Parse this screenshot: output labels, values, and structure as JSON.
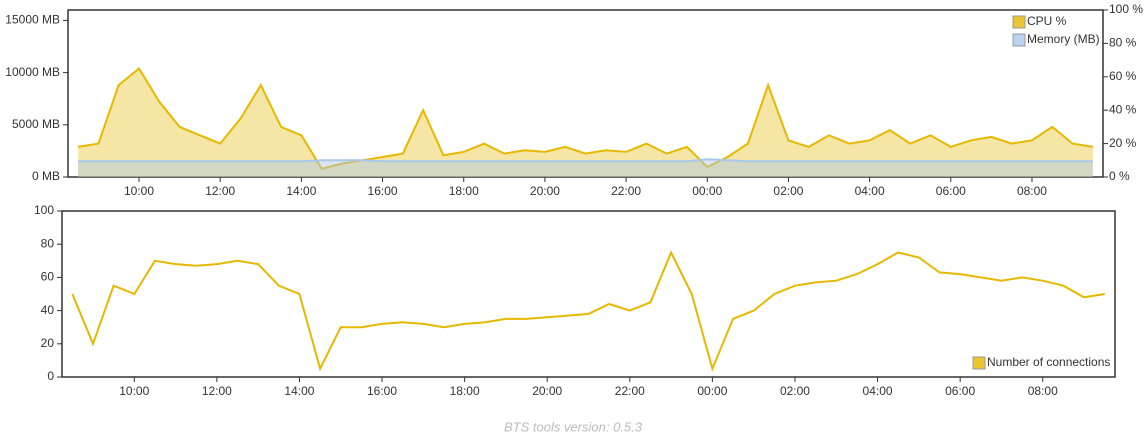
{
  "chart_data": [
    {
      "type": "area",
      "x": [
        "08:30",
        "09:00",
        "09:30",
        "10:00",
        "10:30",
        "11:00",
        "11:30",
        "12:00",
        "12:30",
        "13:00",
        "13:30",
        "14:00",
        "14:30",
        "15:00",
        "15:30",
        "16:00",
        "16:30",
        "17:00",
        "17:30",
        "18:00",
        "18:30",
        "19:00",
        "19:30",
        "20:00",
        "20:30",
        "21:00",
        "21:30",
        "22:00",
        "22:30",
        "23:00",
        "23:30",
        "00:00",
        "00:30",
        "01:00",
        "01:30",
        "02:00",
        "02:30",
        "03:00",
        "03:30",
        "04:00",
        "04:30",
        "05:00",
        "05:30",
        "06:00",
        "06:30",
        "07:00",
        "07:30",
        "08:00",
        "08:30",
        "09:00",
        "09:30"
      ],
      "xticks": [
        "10:00",
        "12:00",
        "14:00",
        "16:00",
        "18:00",
        "20:00",
        "22:00",
        "00:00",
        "02:00",
        "04:00",
        "06:00",
        "08:00"
      ],
      "ylim": [
        0,
        16000
      ],
      "yticks": [
        {
          "value": 0,
          "label": "0 MB"
        },
        {
          "value": 5000,
          "label": "5000 MB"
        },
        {
          "value": 10000,
          "label": "10000 MB"
        },
        {
          "value": 15000,
          "label": "15000 MB"
        }
      ],
      "y2lim": [
        0,
        100
      ],
      "y2ticks": [
        {
          "value": 0,
          "label": "0 %"
        },
        {
          "value": 20,
          "label": "20 %"
        },
        {
          "value": 40,
          "label": "40 %"
        },
        {
          "value": 60,
          "label": "60 %"
        },
        {
          "value": 80,
          "label": "80 %"
        },
        {
          "value": 100,
          "label": "100 %"
        }
      ],
      "legend": "upper right",
      "series": [
        {
          "name": "CPU %",
          "color": "#e6b800",
          "axis": "y2",
          "values": [
            18,
            20,
            55,
            65,
            45,
            30,
            25,
            20,
            35,
            55,
            30,
            25,
            5,
            8,
            10,
            12,
            14,
            40,
            13,
            15,
            20,
            14,
            16,
            15,
            18,
            14,
            16,
            15,
            20,
            14,
            18,
            6,
            12,
            20,
            55,
            22,
            18,
            25,
            20,
            22,
            28,
            20,
            25,
            18,
            22,
            24,
            20,
            22,
            30,
            20,
            18
          ]
        },
        {
          "name": "Memory (MB)",
          "color": "#a9c8ec",
          "axis": "y",
          "values": [
            1500,
            1500,
            1500,
            1500,
            1500,
            1500,
            1500,
            1500,
            1500,
            1500,
            1500,
            1500,
            1600,
            1600,
            1600,
            1500,
            1500,
            1500,
            1500,
            1500,
            1500,
            1500,
            1500,
            1500,
            1500,
            1500,
            1500,
            1500,
            1500,
            1500,
            1500,
            1700,
            1600,
            1500,
            1500,
            1500,
            1500,
            1500,
            1500,
            1500,
            1500,
            1500,
            1500,
            1500,
            1500,
            1500,
            1500,
            1500,
            1500,
            1500,
            1500
          ]
        }
      ]
    },
    {
      "type": "line",
      "x": [
        "08:30",
        "09:00",
        "09:30",
        "10:00",
        "10:30",
        "11:00",
        "11:30",
        "12:00",
        "12:30",
        "13:00",
        "13:30",
        "14:00",
        "14:30",
        "15:00",
        "15:30",
        "16:00",
        "16:30",
        "17:00",
        "17:30",
        "18:00",
        "18:30",
        "19:00",
        "19:30",
        "20:00",
        "20:30",
        "21:00",
        "21:30",
        "22:00",
        "22:30",
        "23:00",
        "23:30",
        "00:00",
        "00:30",
        "01:00",
        "01:30",
        "02:00",
        "02:30",
        "03:00",
        "03:30",
        "04:00",
        "04:30",
        "05:00",
        "05:30",
        "06:00",
        "06:30",
        "07:00",
        "07:30",
        "08:00",
        "08:30",
        "09:00",
        "09:30"
      ],
      "xticks": [
        "10:00",
        "12:00",
        "14:00",
        "16:00",
        "18:00",
        "20:00",
        "22:00",
        "00:00",
        "02:00",
        "04:00",
        "06:00",
        "08:00"
      ],
      "ylim": [
        0,
        100
      ],
      "yticks": [
        0,
        20,
        40,
        60,
        80,
        100
      ],
      "legend": "lower right",
      "series": [
        {
          "name": "Number of connections",
          "color": "#e6b800",
          "values": [
            50,
            20,
            55,
            50,
            70,
            68,
            67,
            68,
            70,
            68,
            55,
            50,
            5,
            30,
            30,
            32,
            33,
            32,
            30,
            32,
            33,
            35,
            35,
            36,
            37,
            38,
            44,
            40,
            45,
            75,
            50,
            5,
            35,
            40,
            50,
            55,
            57,
            58,
            62,
            68,
            75,
            72,
            63,
            62,
            60,
            58,
            60,
            58,
            55,
            48,
            50
          ]
        }
      ]
    }
  ],
  "footer": "BTS tools version: 0.5.3"
}
